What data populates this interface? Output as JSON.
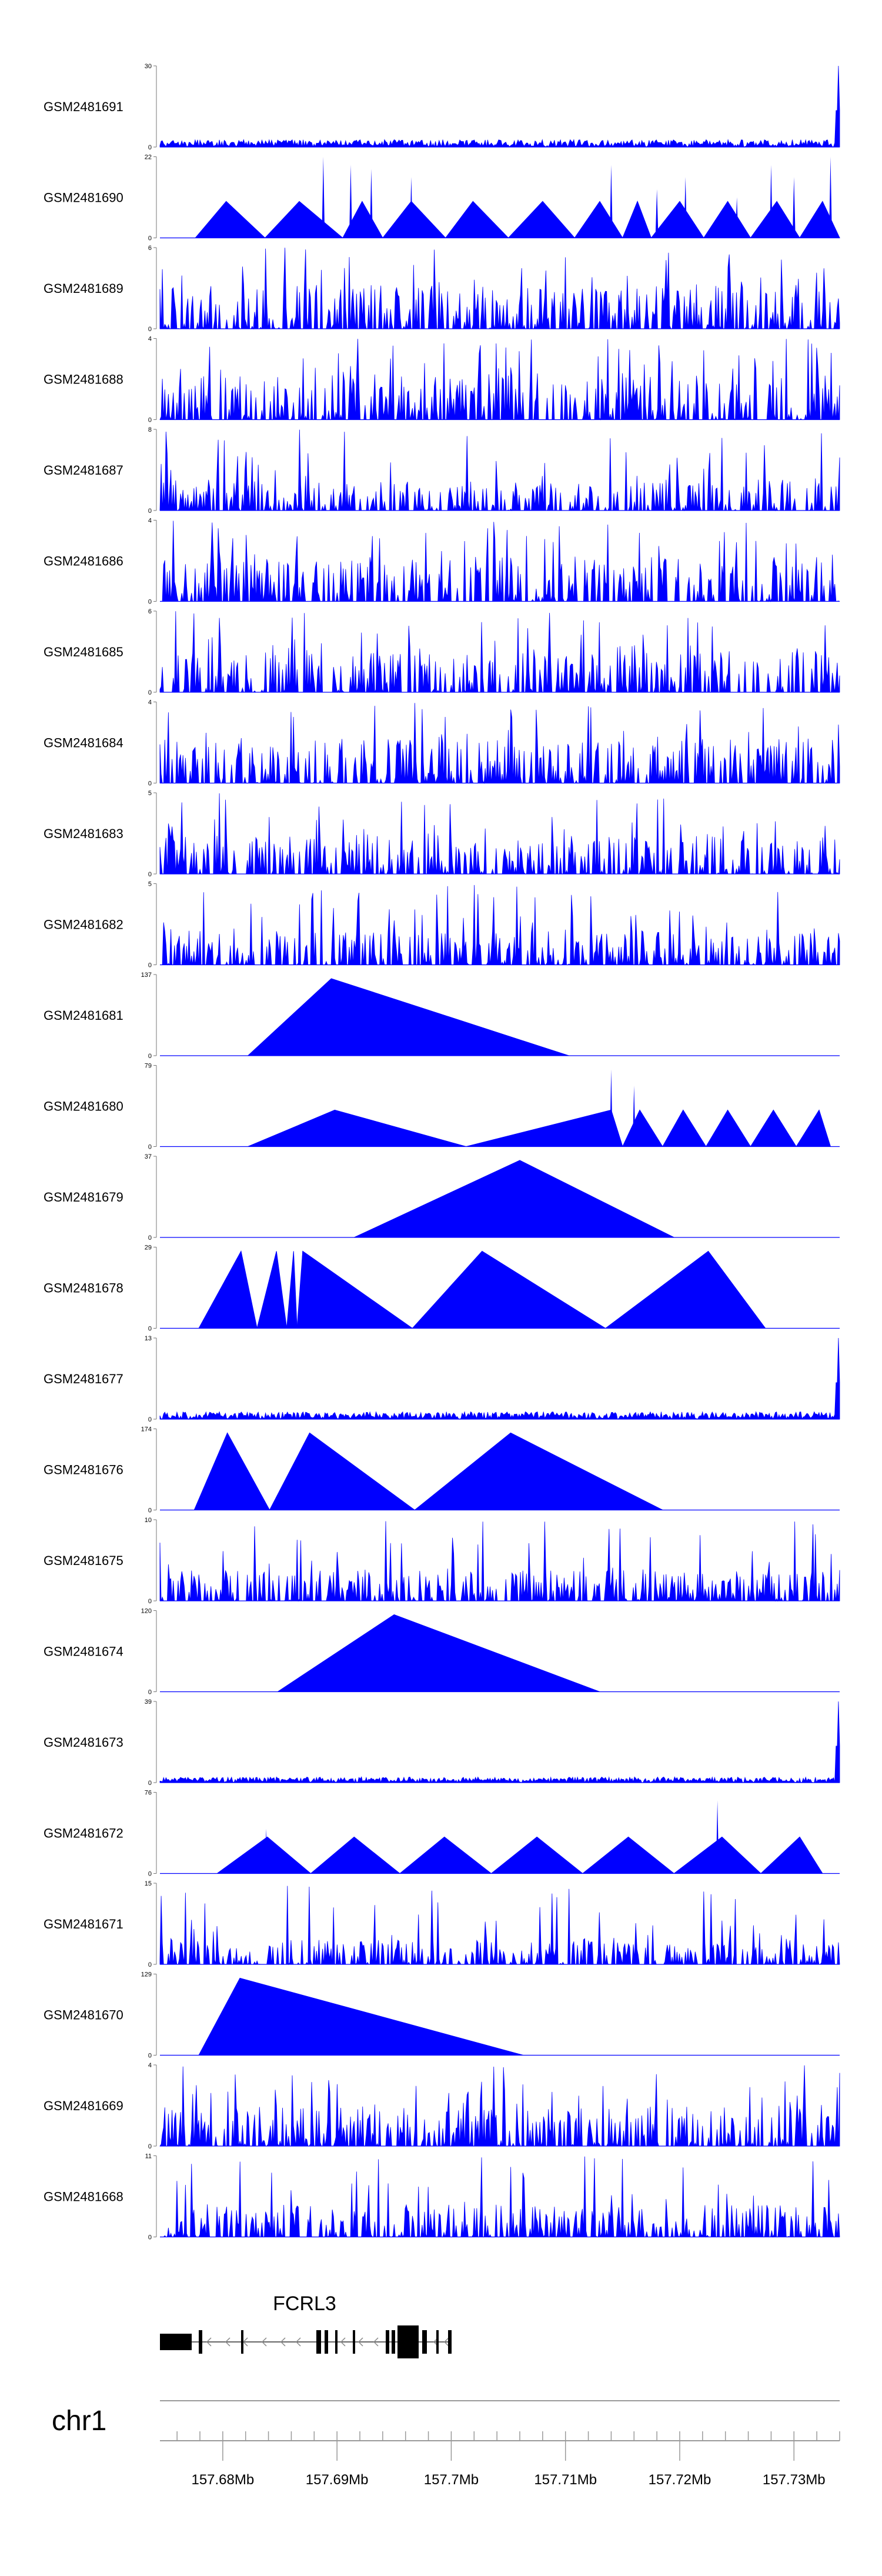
{
  "chart_data": {
    "type": "area",
    "title": "",
    "fill_color": "#0000ff",
    "gene": {
      "name": "FCRL3",
      "strand": "-"
    },
    "chromosome": {
      "label": "chr1"
    },
    "x_axis": {
      "unit": "Mb",
      "range": [
        157.6745,
        157.734
      ],
      "ticks": [
        157.68,
        157.69,
        157.7,
        157.71,
        157.72,
        157.73
      ],
      "tick_labels": [
        "157.68Mb",
        "157.69Mb",
        "157.7Mb",
        "157.71Mb",
        "157.72Mb",
        "157.73Mb"
      ]
    },
    "tracks": [
      {
        "name": "GSM2481691",
        "ymax": 30,
        "ymin": 0,
        "ymax_label": "30",
        "ymin_label": "0",
        "pattern": "dense_spike_end",
        "peak": 30,
        "noise": 0.13,
        "seed": 11
      },
      {
        "name": "GSM2481690",
        "ymax": 22,
        "ymin": 0,
        "ymax_label": "22",
        "ymin_label": "0",
        "pattern": "triangles",
        "tris": [
          [
            157.6776,
            157.6803,
            157.6837,
            0.45
          ],
          [
            157.6837,
            157.6867,
            157.6905,
            0.45
          ],
          [
            157.6905,
            157.6922,
            157.694,
            0.45
          ],
          [
            157.694,
            157.6965,
            157.6995,
            0.45
          ],
          [
            157.6995,
            157.7019,
            157.705,
            0.45
          ],
          [
            157.705,
            157.708,
            157.7108,
            0.45
          ],
          [
            157.7108,
            157.713,
            157.715,
            0.45
          ],
          [
            157.715,
            157.7163,
            157.7175,
            0.45
          ],
          [
            157.7175,
            157.72,
            157.7221,
            0.45
          ],
          [
            157.7221,
            157.7242,
            157.7262,
            0.45
          ],
          [
            157.7262,
            157.7285,
            157.7305,
            0.45
          ],
          [
            157.7305,
            157.7325,
            157.734,
            0.45
          ]
        ],
        "spikes": [
          [
            157.6888,
            1.0
          ],
          [
            157.6912,
            0.9
          ],
          [
            157.693,
            0.85
          ],
          [
            157.6965,
            0.75
          ],
          [
            157.714,
            0.9
          ],
          [
            157.718,
            0.6
          ],
          [
            157.7205,
            0.75
          ],
          [
            157.725,
            0.5
          ],
          [
            157.728,
            0.9
          ],
          [
            157.73,
            0.75
          ],
          [
            157.7332,
            1.0
          ]
        ],
        "seed": 12
      },
      {
        "name": "GSM2481689",
        "ymax": 6,
        "ymin": 0,
        "ymax_label": "6",
        "ymin_label": "0",
        "pattern": "dense",
        "noise": 0.55,
        "seed": 13
      },
      {
        "name": "GSM2481688",
        "ymax": 4,
        "ymin": 0,
        "ymax_label": "4",
        "ymin_label": "0",
        "pattern": "dense",
        "noise": 0.55,
        "seed": 14
      },
      {
        "name": "GSM2481687",
        "ymax": 8,
        "ymin": 0,
        "ymax_label": "8",
        "ymin_label": "0",
        "pattern": "dense",
        "noise": 0.38,
        "seed": 15
      },
      {
        "name": "GSM2481686",
        "ymax": 4,
        "ymin": 0,
        "ymax_label": "4",
        "ymin_label": "0",
        "pattern": "dense",
        "noise": 0.55,
        "seed": 16
      },
      {
        "name": "GSM2481685",
        "ymax": 6,
        "ymin": 0,
        "ymax_label": "6",
        "ymin_label": "0",
        "pattern": "dense",
        "noise": 0.5,
        "seed": 17
      },
      {
        "name": "GSM2481684",
        "ymax": 4,
        "ymin": 0,
        "ymax_label": "4",
        "ymin_label": "0",
        "pattern": "dense",
        "noise": 0.55,
        "seed": 18
      },
      {
        "name": "GSM2481683",
        "ymax": 5,
        "ymin": 0,
        "ymax_label": "5",
        "ymin_label": "0",
        "pattern": "dense",
        "noise": 0.5,
        "seed": 19
      },
      {
        "name": "GSM2481682",
        "ymax": 5,
        "ymin": 0,
        "ymax_label": "5",
        "ymin_label": "0",
        "pattern": "dense",
        "noise": 0.42,
        "seed": 20
      },
      {
        "name": "GSM2481681",
        "ymax": 137,
        "ymin": 0,
        "ymax_label": "137",
        "ymin_label": "0",
        "pattern": "triangles",
        "tris": [
          [
            157.6822,
            157.6895,
            157.7103,
            0.95
          ]
        ],
        "spikes": [],
        "seed": 21
      },
      {
        "name": "GSM2481680",
        "ymax": 79,
        "ymin": 0,
        "ymax_label": "79",
        "ymin_label": "0",
        "pattern": "triangles",
        "tris": [
          [
            157.6822,
            157.6898,
            157.7013,
            0.45
          ],
          [
            157.7013,
            157.714,
            157.715,
            0.45
          ],
          [
            157.715,
            157.7165,
            157.7185,
            0.45
          ],
          [
            157.7185,
            157.7203,
            157.7223,
            0.45
          ],
          [
            157.7223,
            157.7242,
            157.7262,
            0.45
          ],
          [
            157.7262,
            157.7282,
            157.7302,
            0.45
          ],
          [
            157.7302,
            157.7322,
            157.7332,
            0.45
          ]
        ],
        "spikes": [
          [
            157.714,
            0.95
          ],
          [
            157.716,
            0.75
          ]
        ],
        "seed": 22
      },
      {
        "name": "GSM2481679",
        "ymax": 37,
        "ymin": 0,
        "ymax_label": "37",
        "ymin_label": "0",
        "pattern": "triangles",
        "tris": [
          [
            157.6915,
            157.706,
            157.7195,
            0.95
          ]
        ],
        "spikes": [],
        "seed": 23
      },
      {
        "name": "GSM2481678",
        "ymax": 29,
        "ymin": 0,
        "ymax_label": "29",
        "ymin_label": "0",
        "pattern": "triangles",
        "tris": [
          [
            157.6779,
            157.6816,
            157.683,
            0.95
          ],
          [
            157.683,
            157.6847,
            157.6856,
            0.95
          ],
          [
            157.6856,
            157.6862,
            157.6865,
            0.95
          ],
          [
            157.6865,
            157.687,
            157.6866,
            0.95
          ],
          [
            157.6866,
            157.687,
            157.6966,
            0.95
          ],
          [
            157.6966,
            157.7027,
            157.7135,
            0.95
          ],
          [
            157.7135,
            157.7225,
            157.7275,
            0.95
          ]
        ],
        "spikes": [],
        "seed": 24
      },
      {
        "name": "GSM2481677",
        "ymax": 13,
        "ymin": 0,
        "ymax_label": "13",
        "ymin_label": "0",
        "pattern": "dense_spike_end",
        "peak": 13,
        "noise": 0.13,
        "seed": 25
      },
      {
        "name": "GSM2481676",
        "ymax": 174,
        "ymin": 0,
        "ymax_label": "174",
        "ymin_label": "0",
        "pattern": "triangles",
        "tris": [
          [
            157.6775,
            157.6804,
            157.6841,
            0.95
          ],
          [
            157.6841,
            157.6876,
            157.6968,
            0.95
          ],
          [
            157.6968,
            157.7052,
            157.7185,
            0.95
          ]
        ],
        "spikes": [],
        "seed": 26
      },
      {
        "name": "GSM2481675",
        "ymax": 10,
        "ymin": 0,
        "ymax_label": "10",
        "ymin_label": "0",
        "pattern": "dense",
        "noise": 0.38,
        "seed": 27
      },
      {
        "name": "GSM2481674",
        "ymax": 120,
        "ymin": 0,
        "ymax_label": "120",
        "ymin_label": "0",
        "pattern": "triangles",
        "tris": [
          [
            157.6848,
            157.695,
            157.713,
            0.95
          ]
        ],
        "spikes": [],
        "seed": 28
      },
      {
        "name": "GSM2481673",
        "ymax": 39,
        "ymin": 0,
        "ymax_label": "39",
        "ymin_label": "0",
        "pattern": "dense_spike_end",
        "peak": 39,
        "noise": 0.1,
        "seed": 29
      },
      {
        "name": "GSM2481672",
        "ymax": 76,
        "ymin": 0,
        "ymax_label": "76",
        "ymin_label": "0",
        "pattern": "triangles",
        "tris": [
          [
            157.6795,
            157.6839,
            157.6877,
            0.45
          ],
          [
            157.6877,
            157.6915,
            157.6955,
            0.45
          ],
          [
            157.6955,
            157.6994,
            157.7035,
            0.45
          ],
          [
            157.7035,
            157.7075,
            157.7115,
            0.45
          ],
          [
            157.7115,
            157.7155,
            157.7195,
            0.45
          ],
          [
            157.7195,
            157.7237,
            157.7271,
            0.45
          ],
          [
            157.7271,
            157.7305,
            157.7325,
            0.45
          ]
        ],
        "spikes": [
          [
            157.6838,
            0.55
          ],
          [
            157.7233,
            0.9
          ]
        ],
        "seed": 30
      },
      {
        "name": "GSM2481671",
        "ymax": 15,
        "ymin": 0,
        "ymax_label": "15",
        "ymin_label": "0",
        "pattern": "dense",
        "noise": 0.3,
        "seed": 31
      },
      {
        "name": "GSM2481670",
        "ymax": 129,
        "ymin": 0,
        "ymax_label": "129",
        "ymin_label": "0",
        "pattern": "triangles",
        "tris": [
          [
            157.6779,
            157.6815,
            157.7063,
            0.95
          ]
        ],
        "spikes": [],
        "seed": 32
      },
      {
        "name": "GSM2481669",
        "ymax": 4,
        "ymin": 0,
        "ymax_label": "4",
        "ymin_label": "0",
        "pattern": "dense",
        "noise": 0.5,
        "seed": 33
      },
      {
        "name": "GSM2481668",
        "ymax": 11,
        "ymin": 0,
        "ymax_label": "11",
        "ymin_label": "0",
        "pattern": "dense",
        "noise": 0.4,
        "seed": 34
      }
    ]
  }
}
